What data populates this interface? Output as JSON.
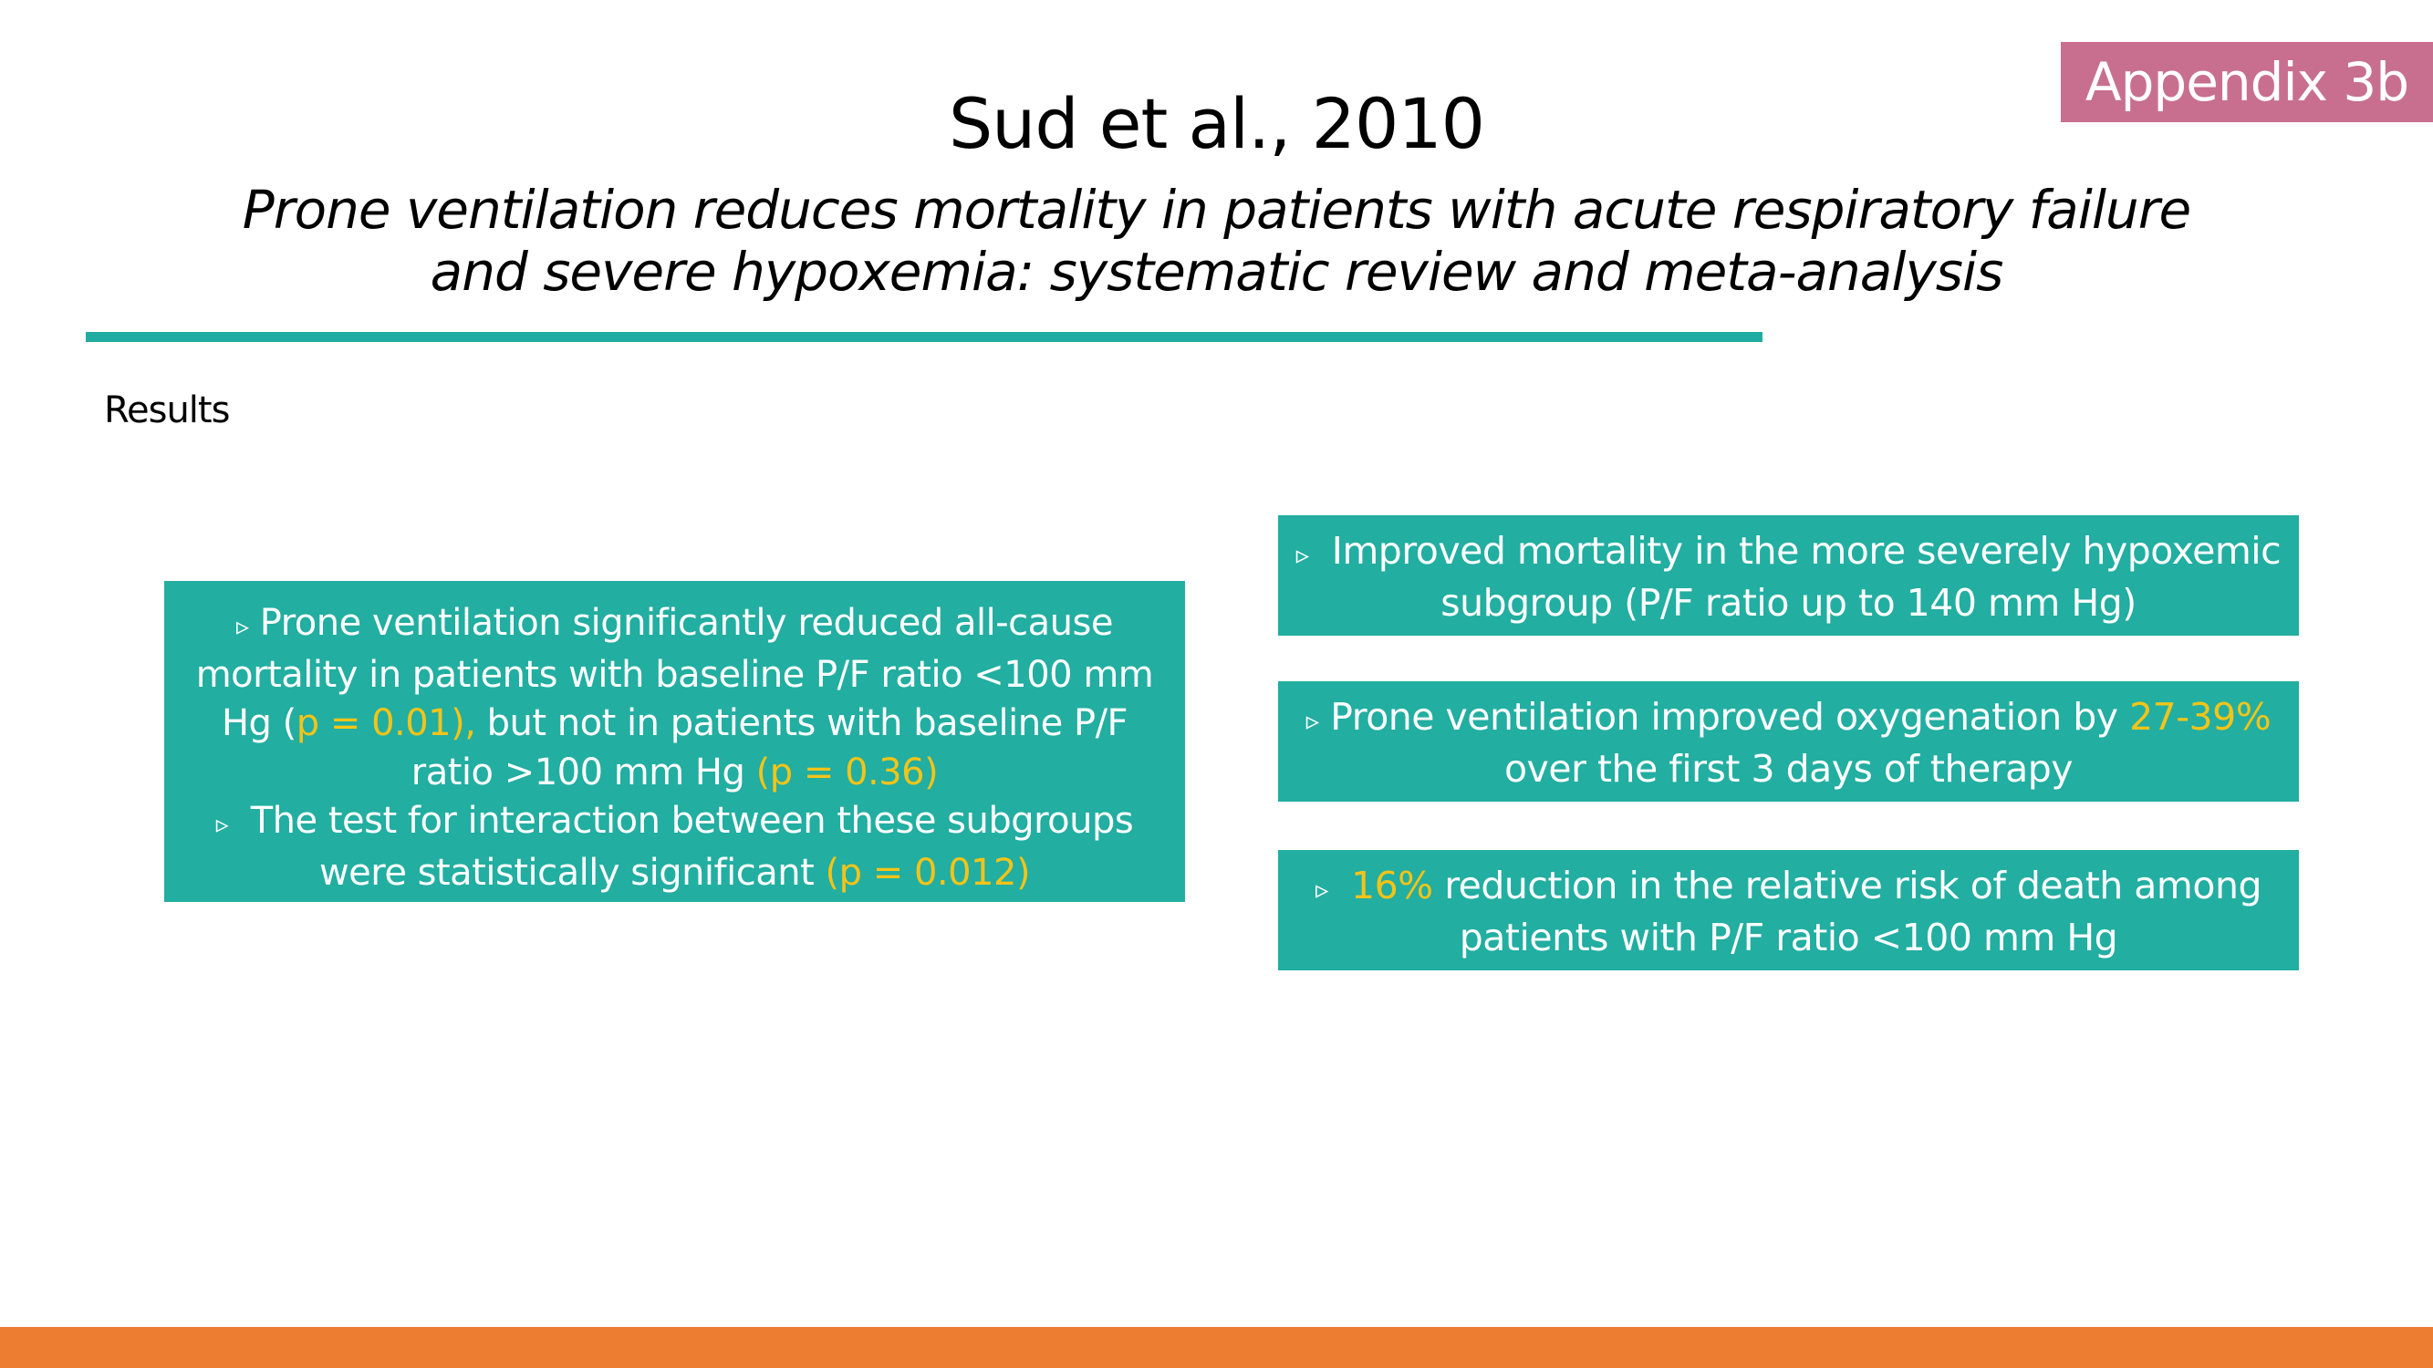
{
  "badge": "Appendix 3b",
  "title": "Sud et al., 2010",
  "subtitle": [
    "Prone ventilation reduces mortality in patients with acute respiratory failure",
    "and severe hypoxemia: systematic review and meta-analysis"
  ],
  "section_label": "Results",
  "bullet_glyph": "▹",
  "left_box": {
    "line1": "Prone ventilation significantly reduced all-cause",
    "line2": "mortality in patients with baseline P/F ratio <100 mm",
    "line3_a": "Hg (",
    "line3_hl": "p = 0.01),",
    "line3_b": " but not in patients with baseline P/F",
    "line4_a": "ratio >100 mm Hg ",
    "line4_hl": "(p = 0.36)",
    "line5": "The test for interaction between these subgroups",
    "line6_a": "were statistically significant ",
    "line6_hl": "(p = 0.012)"
  },
  "right_boxes": {
    "box1": {
      "line1": "Improved mortality in the more severely hypoxemic",
      "line2": "subgroup (P/F ratio up to 140 mm Hg)"
    },
    "box2": {
      "line1_a": "Prone ventilation improved oxygenation by ",
      "line1_hl": "27-39%",
      "line2": "over the first 3 days of therapy"
    },
    "box3": {
      "line1_hl": "16%",
      "line1_b": " reduction in the relative risk of death among",
      "line2": "patients with P/F ratio <100 mm Hg"
    }
  },
  "colors": {
    "teal": "#22aea1",
    "highlight": "#f3c419",
    "badge": "#c86f8f",
    "footer": "#ed7d31"
  }
}
